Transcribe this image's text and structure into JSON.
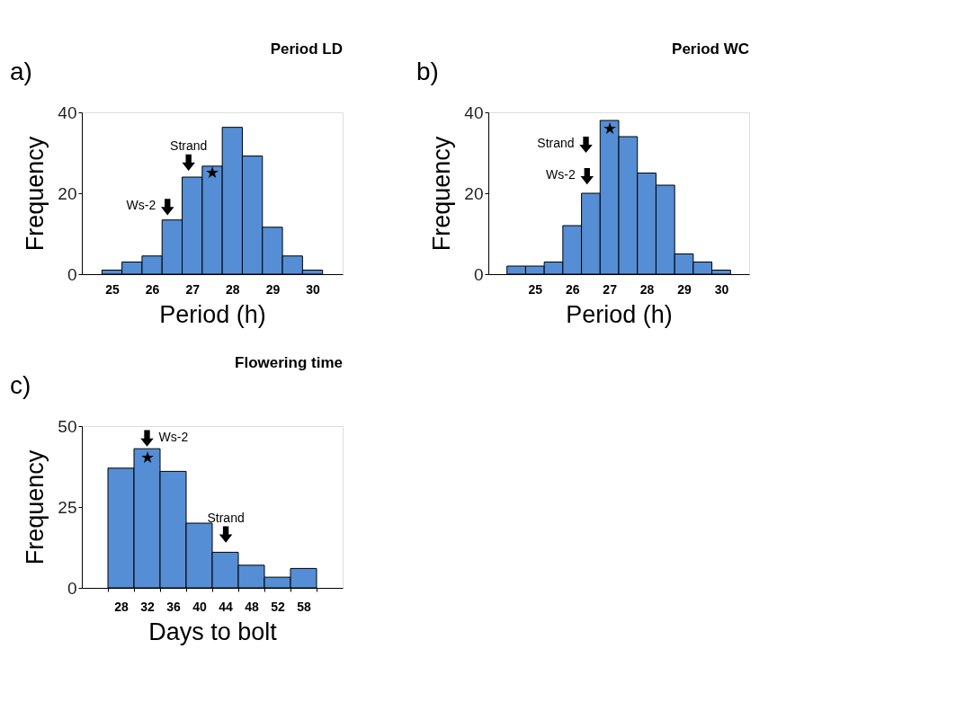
{
  "chart_data": [
    {
      "type": "bar",
      "title": "Period LD",
      "xlabel": "Period (h)",
      "ylabel": "Frequency",
      "color": "#558ed5",
      "categories": [
        "25",
        null,
        "26",
        null,
        "27",
        null,
        "28",
        null,
        "29",
        null,
        "30"
      ],
      "values": [
        1,
        3,
        4.5,
        13.4,
        24,
        26.7,
        36.3,
        29.2,
        11.6,
        4.5,
        1
      ],
      "ylim": [
        0,
        40
      ],
      "yticks": [
        0,
        20,
        40
      ],
      "annotations": [
        "a)",
        "Ws-2",
        "Strand",
        "★"
      ]
    },
    {
      "type": "bar",
      "title": "Period WC",
      "xlabel": "Period (h)",
      "ylabel": "Frequency",
      "color": "#558ed5",
      "categories": [
        null,
        "25",
        null,
        "26",
        null,
        "27",
        null,
        "28",
        null,
        "29",
        null,
        "30"
      ],
      "values": [
        2,
        2,
        3,
        12,
        20,
        38,
        34,
        25,
        22,
        5,
        3,
        1
      ],
      "ylim": [
        0,
        40
      ],
      "yticks": [
        0,
        20,
        40
      ],
      "annotations": [
        "b)",
        "Ws-2",
        "Strand",
        "★"
      ]
    },
    {
      "type": "bar",
      "title": "Flowering time",
      "xlabel": "Days to bolt",
      "ylabel": "Frequency",
      "color": "#558ed5",
      "categories": [
        "28",
        "32",
        "36",
        "40",
        "44",
        "48",
        "52",
        "58"
      ],
      "values": [
        37,
        43,
        36,
        20,
        11,
        7,
        3.3,
        6
      ],
      "ylim": [
        0,
        50
      ],
      "yticks": [
        0,
        25,
        50
      ],
      "annotations": [
        "c)",
        "Ws-2",
        "Strand",
        "★"
      ]
    }
  ]
}
